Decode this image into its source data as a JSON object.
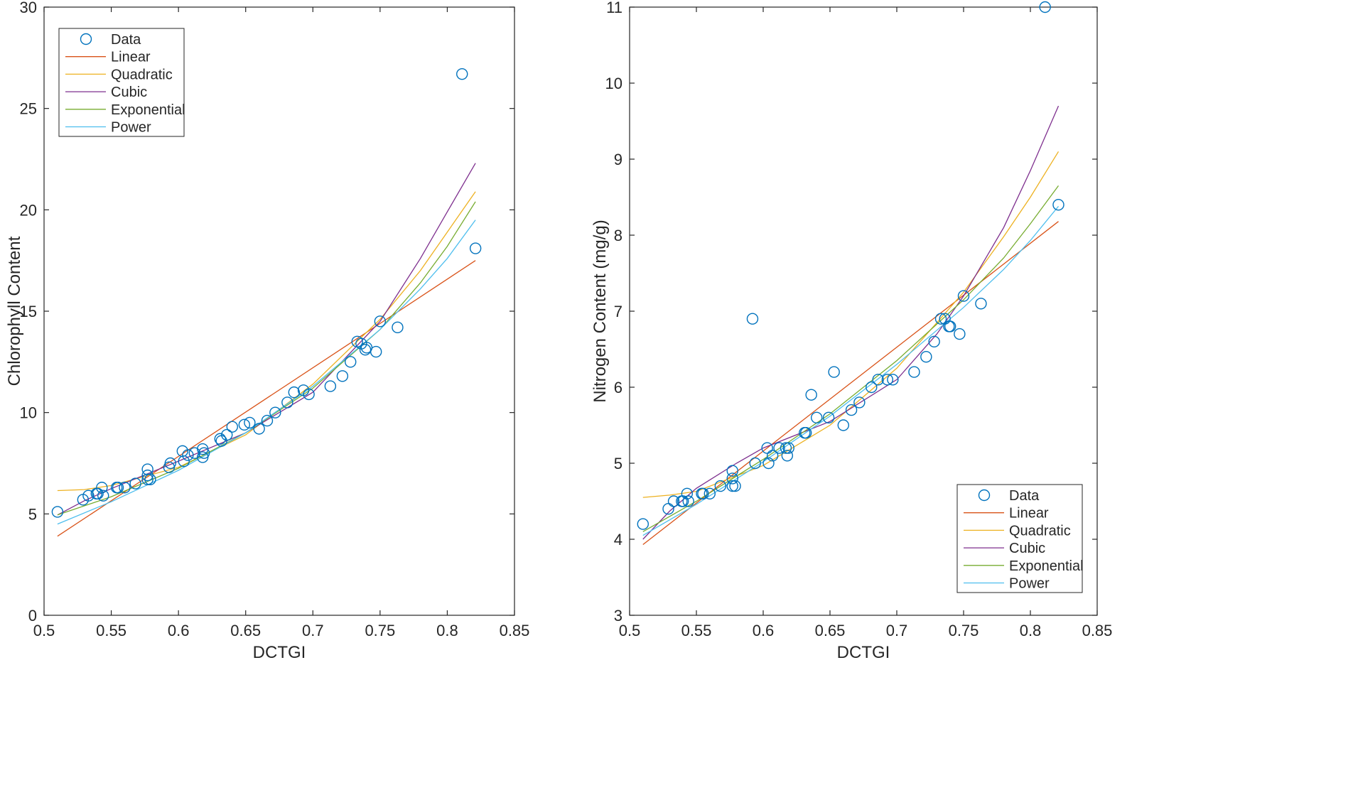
{
  "colors": {
    "data": "#0072BD",
    "linear": "#D95319",
    "quadratic": "#EDB120",
    "cubic": "#7E2F8E",
    "exponential": "#77AC30",
    "power": "#4DBEEE",
    "axis": "#262626"
  },
  "chart_data": [
    {
      "type": "scatter",
      "title": "",
      "xlabel": "DCTGI",
      "ylabel": "Chlorophyll Content",
      "xlim": [
        0.5,
        0.85
      ],
      "ylim": [
        0,
        30
      ],
      "xticks": [
        0.5,
        0.55,
        0.6,
        0.65,
        0.7,
        0.75,
        0.8,
        0.85
      ],
      "xtick_labels": [
        "0.5",
        "0.55",
        "0.6",
        "0.65",
        "0.7",
        "0.75",
        "0.8",
        "0.85"
      ],
      "yticks": [
        0,
        5,
        10,
        15,
        20,
        25,
        30
      ],
      "ytick_labels": [
        "0",
        "5",
        "10",
        "15",
        "20",
        "25",
        "30"
      ],
      "legend_position": "top-left",
      "legend": [
        "Data",
        "Linear",
        "Quadratic",
        "Cubic",
        "Exponential",
        "Power"
      ],
      "points": [
        [
          0.51,
          5.1
        ],
        [
          0.529,
          5.7
        ],
        [
          0.533,
          5.9
        ],
        [
          0.539,
          6.0
        ],
        [
          0.54,
          6.0
        ],
        [
          0.543,
          6.3
        ],
        [
          0.544,
          5.9
        ],
        [
          0.554,
          6.3
        ],
        [
          0.555,
          6.3
        ],
        [
          0.56,
          6.3
        ],
        [
          0.568,
          6.5
        ],
        [
          0.577,
          6.7
        ],
        [
          0.577,
          6.9
        ],
        [
          0.577,
          7.2
        ],
        [
          0.579,
          6.7
        ],
        [
          0.593,
          7.3
        ],
        [
          0.594,
          7.5
        ],
        [
          0.603,
          8.1
        ],
        [
          0.604,
          7.6
        ],
        [
          0.607,
          7.9
        ],
        [
          0.612,
          8.0
        ],
        [
          0.618,
          7.8
        ],
        [
          0.618,
          8.2
        ],
        [
          0.619,
          8.0
        ],
        [
          0.631,
          8.7
        ],
        [
          0.632,
          8.6
        ],
        [
          0.636,
          8.9
        ],
        [
          0.64,
          9.3
        ],
        [
          0.649,
          9.4
        ],
        [
          0.653,
          9.5
        ],
        [
          0.66,
          9.2
        ],
        [
          0.666,
          9.6
        ],
        [
          0.672,
          10.0
        ],
        [
          0.681,
          10.5
        ],
        [
          0.686,
          11.0
        ],
        [
          0.693,
          11.1
        ],
        [
          0.697,
          10.9
        ],
        [
          0.713,
          11.3
        ],
        [
          0.722,
          11.8
        ],
        [
          0.728,
          12.5
        ],
        [
          0.733,
          13.5
        ],
        [
          0.736,
          13.4
        ],
        [
          0.739,
          13.1
        ],
        [
          0.74,
          13.2
        ],
        [
          0.747,
          13.0
        ],
        [
          0.75,
          14.5
        ],
        [
          0.763,
          14.2
        ],
        [
          0.811,
          26.7
        ],
        [
          0.821,
          18.1
        ]
      ],
      "series": [
        {
          "name": "Linear",
          "x": [
            0.51,
            0.821
          ],
          "y": [
            3.9,
            17.5
          ]
        },
        {
          "name": "Quadratic",
          "x": [
            0.51,
            0.53,
            0.55,
            0.6,
            0.65,
            0.7,
            0.75,
            0.78,
            0.8,
            0.821
          ],
          "y": [
            6.15,
            6.2,
            6.4,
            7.3,
            8.9,
            11.4,
            14.6,
            17.0,
            18.9,
            20.9
          ]
        },
        {
          "name": "Cubic",
          "x": [
            0.51,
            0.53,
            0.55,
            0.6,
            0.65,
            0.7,
            0.75,
            0.78,
            0.8,
            0.821
          ],
          "y": [
            4.95,
            5.65,
            6.25,
            7.6,
            9.0,
            11.0,
            14.5,
            17.6,
            19.9,
            22.3
          ]
        },
        {
          "name": "Exponential",
          "x": [
            0.51,
            0.55,
            0.6,
            0.65,
            0.7,
            0.75,
            0.78,
            0.8,
            0.821
          ],
          "y": [
            4.95,
            5.85,
            7.25,
            9.0,
            11.2,
            14.1,
            16.4,
            18.2,
            20.4
          ]
        },
        {
          "name": "Power",
          "x": [
            0.51,
            0.55,
            0.6,
            0.65,
            0.7,
            0.75,
            0.78,
            0.8,
            0.821
          ],
          "y": [
            4.5,
            5.6,
            7.15,
            9.0,
            11.3,
            14.1,
            16.1,
            17.6,
            19.5
          ]
        }
      ]
    },
    {
      "type": "scatter",
      "title": "",
      "xlabel": "DCTGI",
      "ylabel": "Nitrogen Content (mg/g)",
      "xlim": [
        0.5,
        0.85
      ],
      "ylim": [
        3,
        11
      ],
      "xticks": [
        0.5,
        0.55,
        0.6,
        0.65,
        0.7,
        0.75,
        0.8,
        0.85
      ],
      "xtick_labels": [
        "0.5",
        "0.55",
        "0.6",
        "0.65",
        "0.7",
        "0.75",
        "0.8",
        "0.85"
      ],
      "yticks": [
        3,
        4,
        5,
        6,
        7,
        8,
        9,
        10,
        11
      ],
      "ytick_labels": [
        "3",
        "4",
        "5",
        "6",
        "7",
        "8",
        "9",
        "10",
        "11"
      ],
      "legend_position": "bottom-right",
      "legend": [
        "Data",
        "Linear",
        "Quadratic",
        "Cubic",
        "Exponential",
        "Power"
      ],
      "points": [
        [
          0.51,
          4.2
        ],
        [
          0.529,
          4.4
        ],
        [
          0.533,
          4.5
        ],
        [
          0.539,
          4.5
        ],
        [
          0.54,
          4.5
        ],
        [
          0.543,
          4.6
        ],
        [
          0.544,
          4.5
        ],
        [
          0.554,
          4.6
        ],
        [
          0.555,
          4.6
        ],
        [
          0.56,
          4.6
        ],
        [
          0.568,
          4.7
        ],
        [
          0.577,
          4.7
        ],
        [
          0.577,
          4.8
        ],
        [
          0.577,
          4.9
        ],
        [
          0.579,
          4.7
        ],
        [
          0.592,
          6.9
        ],
        [
          0.594,
          5.0
        ],
        [
          0.603,
          5.2
        ],
        [
          0.604,
          5.0
        ],
        [
          0.607,
          5.1
        ],
        [
          0.612,
          5.2
        ],
        [
          0.617,
          5.2
        ],
        [
          0.618,
          5.1
        ],
        [
          0.619,
          5.2
        ],
        [
          0.631,
          5.4
        ],
        [
          0.632,
          5.4
        ],
        [
          0.636,
          5.9
        ],
        [
          0.64,
          5.6
        ],
        [
          0.649,
          5.6
        ],
        [
          0.653,
          6.2
        ],
        [
          0.66,
          5.5
        ],
        [
          0.666,
          5.7
        ],
        [
          0.672,
          5.8
        ],
        [
          0.681,
          6.0
        ],
        [
          0.686,
          6.1
        ],
        [
          0.693,
          6.1
        ],
        [
          0.697,
          6.1
        ],
        [
          0.713,
          6.2
        ],
        [
          0.722,
          6.4
        ],
        [
          0.728,
          6.6
        ],
        [
          0.733,
          6.9
        ],
        [
          0.736,
          6.9
        ],
        [
          0.739,
          6.8
        ],
        [
          0.74,
          6.8
        ],
        [
          0.747,
          6.7
        ],
        [
          0.75,
          7.2
        ],
        [
          0.763,
          7.1
        ],
        [
          0.811,
          11.0
        ],
        [
          0.821,
          8.4
        ]
      ],
      "series": [
        {
          "name": "Linear",
          "x": [
            0.51,
            0.821
          ],
          "y": [
            3.93,
            8.18
          ]
        },
        {
          "name": "Quadratic",
          "x": [
            0.51,
            0.53,
            0.55,
            0.6,
            0.65,
            0.7,
            0.75,
            0.78,
            0.8,
            0.821
          ],
          "y": [
            4.55,
            4.58,
            4.63,
            4.97,
            5.5,
            6.25,
            7.25,
            7.98,
            8.5,
            9.1
          ]
        },
        {
          "name": "Cubic",
          "x": [
            0.51,
            0.53,
            0.55,
            0.58,
            0.6,
            0.65,
            0.7,
            0.73,
            0.75,
            0.78,
            0.8,
            0.821
          ],
          "y": [
            4.0,
            4.37,
            4.67,
            5.0,
            5.2,
            5.55,
            6.1,
            6.7,
            7.2,
            8.1,
            8.85,
            9.7
          ]
        },
        {
          "name": "Exponential",
          "x": [
            0.51,
            0.55,
            0.6,
            0.65,
            0.7,
            0.75,
            0.78,
            0.8,
            0.821
          ],
          "y": [
            4.1,
            4.5,
            5.05,
            5.65,
            6.35,
            7.15,
            7.7,
            8.15,
            8.65
          ]
        },
        {
          "name": "Power",
          "x": [
            0.51,
            0.55,
            0.6,
            0.65,
            0.7,
            0.75,
            0.78,
            0.8,
            0.821
          ],
          "y": [
            4.05,
            4.46,
            5.02,
            5.62,
            6.3,
            7.05,
            7.55,
            7.93,
            8.38
          ]
        }
      ]
    }
  ]
}
